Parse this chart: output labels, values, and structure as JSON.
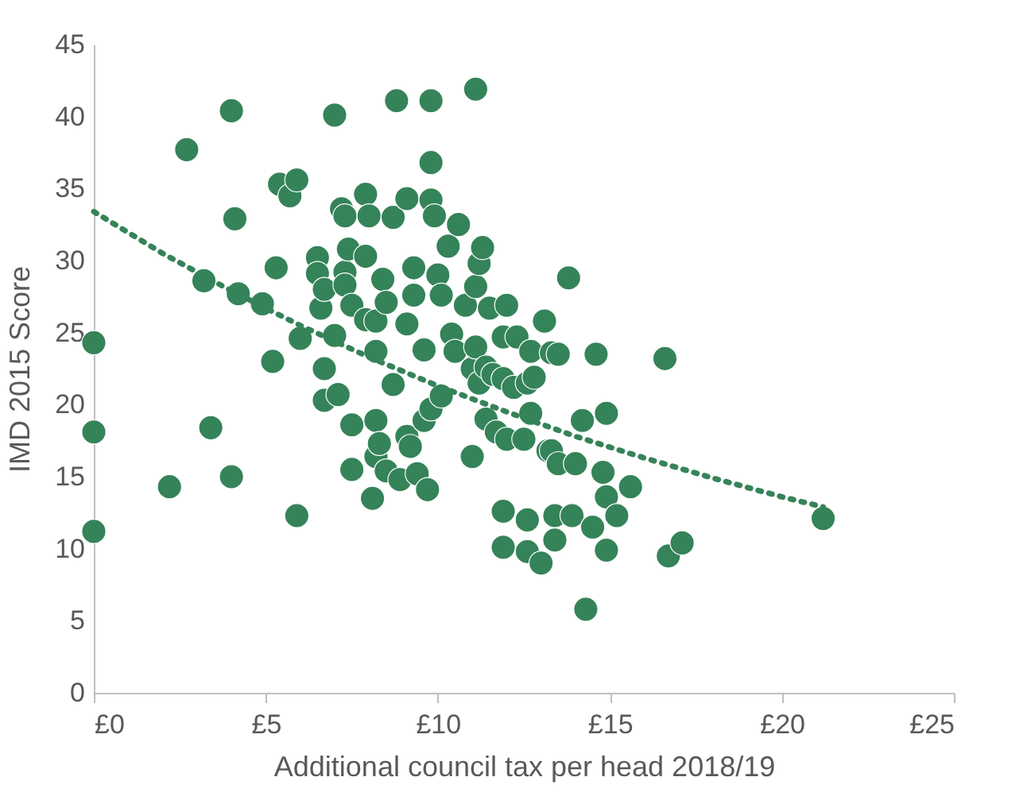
{
  "chart_data": {
    "type": "scatter",
    "xlabel": "Additional council tax per head 2018/19",
    "ylabel": "IMD 2015 Score",
    "xlim": [
      0,
      25
    ],
    "xticks": [
      {
        "value": 0,
        "label": "£0"
      },
      {
        "value": 5,
        "label": "£5"
      },
      {
        "value": 10,
        "label": "£10"
      },
      {
        "value": 15,
        "label": "£15"
      },
      {
        "value": 20,
        "label": "£20"
      },
      {
        "value": 25,
        "label": "£25"
      }
    ],
    "ylim": [
      0,
      45
    ],
    "yticks": [
      0,
      5,
      10,
      15,
      20,
      25,
      30,
      35,
      40,
      45
    ],
    "grid": false,
    "marker": "circle",
    "series": [
      {
        "color": "#358359",
        "x": [
          0,
          0,
          0,
          2.2,
          2.7,
          3.2,
          3.4,
          4.0,
          4.0,
          4.1,
          4.2,
          4.9,
          5.2,
          5.3,
          5.4,
          5.7,
          5.9,
          5.9,
          6.0,
          6.5,
          6.5,
          6.6,
          6.7,
          6.7,
          6.7,
          7.0,
          7.0,
          7.1,
          7.2,
          7.3,
          7.3,
          7.3,
          7.4,
          7.5,
          7.5,
          7.5,
          7.9,
          7.9,
          7.9,
          8.0,
          8.1,
          8.2,
          8.2,
          8.2,
          8.2,
          8.3,
          8.4,
          8.5,
          8.5,
          8.7,
          8.7,
          8.8,
          8.9,
          9.1,
          9.1,
          9.1,
          9.2,
          9.3,
          9.3,
          9.4,
          9.6,
          9.6,
          9.7,
          9.8,
          9.8,
          9.8,
          9.8,
          9.9,
          10.0,
          10.1,
          10.1,
          10.3,
          10.4,
          10.5,
          10.6,
          10.8,
          11.0,
          11.0,
          11.1,
          11.1,
          11.1,
          11.2,
          11.2,
          11.3,
          11.4,
          11.4,
          11.5,
          11.6,
          11.7,
          11.9,
          11.9,
          11.9,
          11.9,
          12.0,
          12.0,
          12.2,
          12.3,
          12.5,
          12.6,
          12.6,
          12.6,
          12.7,
          12.7,
          12.8,
          13.0,
          13.1,
          13.2,
          13.3,
          13.3,
          13.4,
          13.4,
          13.5,
          13.5,
          13.8,
          13.9,
          14.0,
          14.2,
          14.3,
          14.5,
          14.6,
          14.8,
          14.9,
          14.9,
          14.9,
          15.2,
          15.6,
          16.6,
          16.7,
          17.1,
          21.2
        ],
        "values": [
          24.3,
          18.1,
          11.2,
          14.3,
          37.7,
          28.6,
          18.4,
          40.4,
          15.0,
          32.9,
          27.7,
          27.0,
          23.0,
          29.5,
          35.3,
          34.5,
          35.6,
          12.3,
          24.6,
          30.2,
          29.1,
          26.7,
          22.5,
          20.3,
          28.0,
          40.1,
          24.8,
          20.7,
          33.6,
          33.1,
          29.2,
          28.3,
          30.8,
          26.9,
          18.6,
          15.5,
          34.6,
          30.3,
          25.9,
          33.1,
          13.5,
          25.8,
          23.7,
          18.9,
          16.4,
          17.3,
          28.7,
          27.1,
          15.4,
          33.0,
          21.4,
          41.1,
          14.8,
          34.3,
          25.6,
          17.8,
          17.1,
          29.5,
          27.6,
          15.2,
          23.8,
          18.9,
          14.1,
          41.1,
          36.8,
          34.2,
          19.7,
          33.1,
          29.0,
          27.6,
          20.6,
          31.0,
          24.9,
          23.7,
          32.5,
          26.9,
          22.5,
          16.4,
          41.9,
          28.2,
          24.0,
          29.8,
          21.5,
          30.9,
          22.6,
          19.0,
          26.7,
          22.1,
          18.1,
          24.7,
          21.8,
          12.6,
          10.1,
          26.9,
          17.6,
          21.2,
          24.7,
          17.6,
          21.5,
          12.0,
          9.8,
          23.7,
          19.4,
          21.9,
          9.0,
          25.8,
          16.8,
          23.6,
          16.8,
          12.3,
          10.6,
          23.5,
          15.9,
          28.8,
          12.3,
          15.9,
          18.9,
          5.8,
          11.5,
          23.5,
          15.3,
          19.4,
          13.6,
          9.9,
          12.3,
          14.3,
          23.2,
          9.5,
          10.4,
          12.1
        ]
      },
      {
        "type": "line",
        "color": "#358359",
        "line_style": "dotted",
        "marker": "none",
        "x": [
          0,
          2,
          4,
          6,
          8,
          10,
          12,
          14,
          16,
          18,
          20,
          21.2
        ],
        "values": [
          33.4,
          30.5,
          27.9,
          25.5,
          23.3,
          21.3,
          19.5,
          17.8,
          16.3,
          14.9,
          13.6,
          12.9
        ]
      }
    ]
  }
}
